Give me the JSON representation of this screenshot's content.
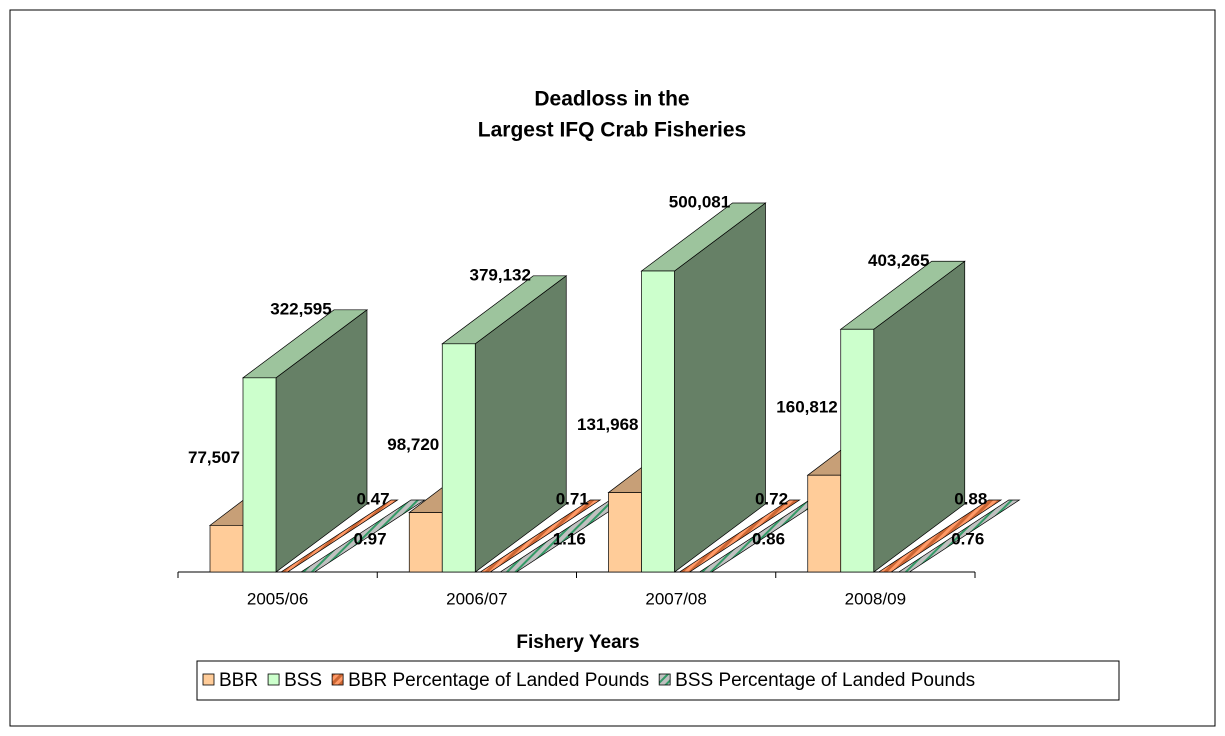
{
  "chart_data": {
    "type": "bar3d",
    "title": [
      "Deadloss in the",
      "Largest IFQ Crab Fisheries"
    ],
    "x_label": "Fishery Years",
    "categories": [
      "2005/06",
      "2006/07",
      "2007/08",
      "2008/09"
    ],
    "series": [
      {
        "name": "BBR",
        "color": "#FFCC99",
        "values": [
          77507,
          98720,
          131968,
          160812
        ],
        "value_labels": [
          "77,507",
          "98,720",
          "131,968",
          "160,812"
        ]
      },
      {
        "name": "BSS",
        "color": "#CCFFCC",
        "values": [
          322595,
          379132,
          500081,
          403265
        ],
        "value_labels": [
          "322,595",
          "379,132",
          "500,081",
          "403,265"
        ]
      },
      {
        "name": "BBR Percentage of Landed Pounds",
        "color": "#CC6633",
        "values": [
          0.47,
          0.71,
          0.72,
          0.88
        ]
      },
      {
        "name": "BSS Percentage of Landed Pounds",
        "color": "#339966",
        "values": [
          0.97,
          1.16,
          0.86,
          0.76
        ]
      }
    ]
  }
}
